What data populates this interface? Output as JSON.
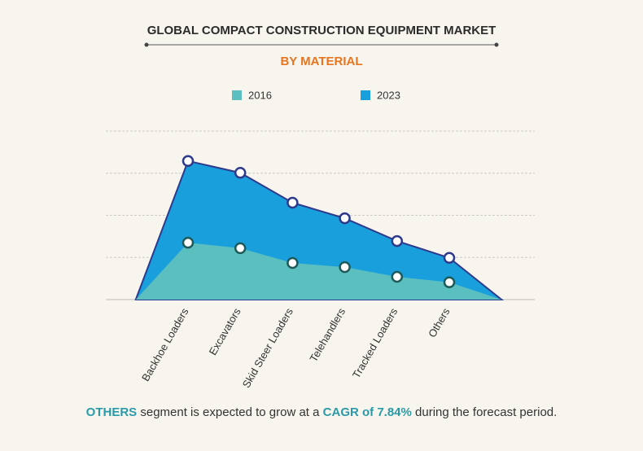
{
  "chart_data": {
    "type": "area",
    "title": "GLOBAL COMPACT CONSTRUCTION EQUIPMENT MARKET",
    "subtitle": "BY MATERIAL",
    "categories": [
      "Backhoe Loaders",
      "Excavators",
      "Skid Steer Loaders",
      "Telehandlers",
      "Tracked Loaders",
      "Others"
    ],
    "series": [
      {
        "name": "2023",
        "color": "#1a9fdd",
        "values": [
          3.29,
          3.01,
          2.3,
          1.93,
          1.39,
          0.99
        ]
      },
      {
        "name": "2016",
        "color": "#5bbfbf",
        "values": [
          1.35,
          1.22,
          0.87,
          0.77,
          0.54,
          0.41
        ]
      }
    ],
    "legend_order": [
      "2016",
      "2023"
    ],
    "ylim": [
      0,
      4
    ],
    "yticks": [
      0,
      1,
      2,
      3,
      4
    ],
    "grid": true,
    "annotation": {
      "parts": [
        "OTHERS",
        " segment is expected to grow at a ",
        "CAGR of 7.84%",
        " during the forecast period."
      ]
    }
  }
}
